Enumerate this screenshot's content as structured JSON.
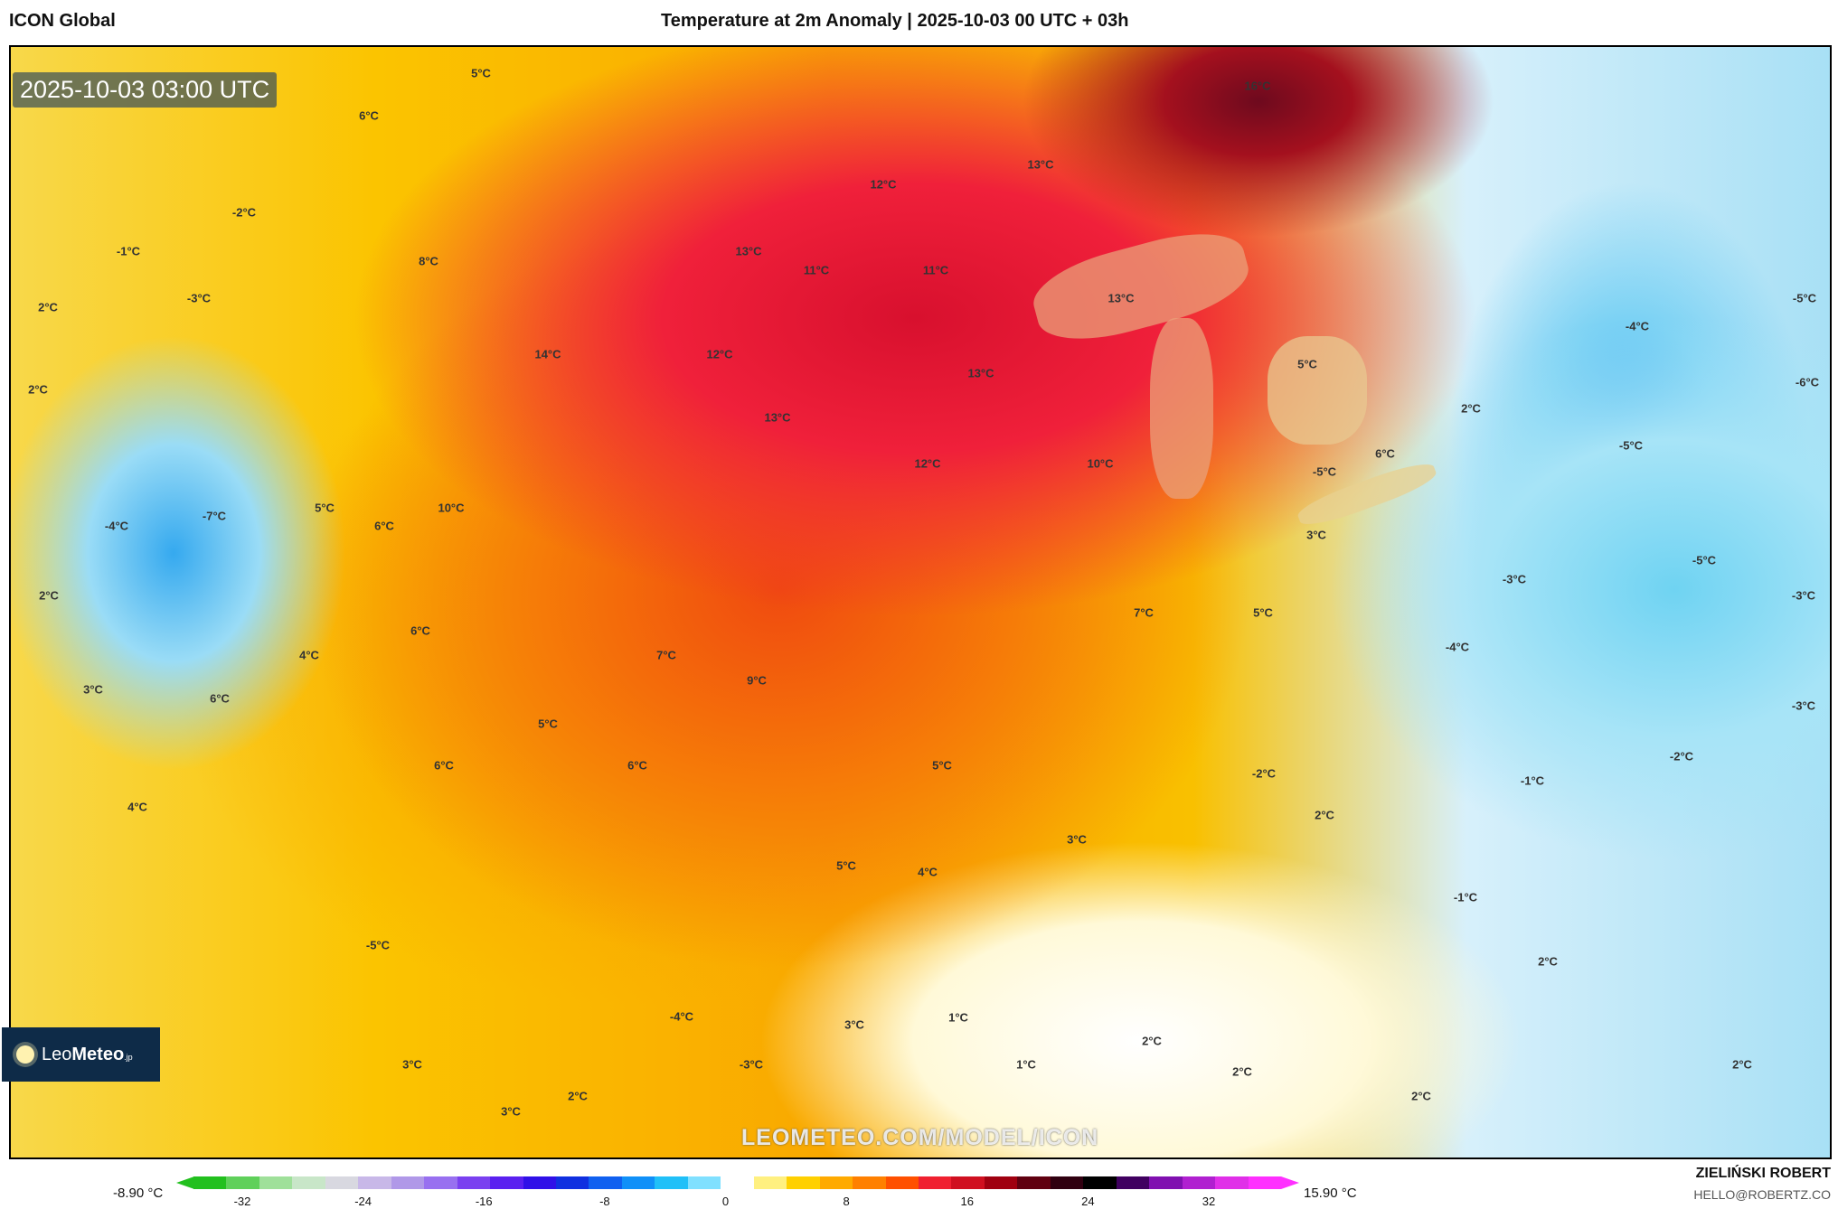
{
  "header": {
    "model": "ICON Global",
    "title": "Temperature at 2m Anomaly | 2025-10-03 00 UTC + 03h"
  },
  "map": {
    "timestamp": "2025-10-03 03:00 UTC",
    "watermark": "LEOMETEO.COM/MODEL/ICON",
    "labels": [
      "5°C",
      "6°C",
      "16°C",
      "13°C",
      "12°C",
      "-2°C",
      "-1°C",
      "8°C",
      "13°C",
      "11°C",
      "11°C",
      "-3°C",
      "2°C",
      "13°C",
      "-4°C",
      "-5°C",
      "12°C",
      "14°C",
      "5°C",
      "2°C",
      "13°C",
      "-6°C",
      "2°C",
      "13°C",
      "6°C",
      "12°C",
      "10°C",
      "-5°C",
      "-5°C",
      "5°C",
      "10°C",
      "-4°C",
      "-7°C",
      "6°C",
      "3°C",
      "-5°C",
      "-3°C",
      "2°C",
      "-3°C",
      "7°C",
      "5°C",
      "6°C",
      "-4°C",
      "4°C",
      "7°C",
      "9°C",
      "3°C",
      "-3°C",
      "6°C",
      "5°C",
      "-2°C",
      "6°C",
      "6°C",
      "5°C",
      "-2°C",
      "-1°C",
      "4°C",
      "2°C",
      "3°C",
      "5°C",
      "4°C",
      "-1°C",
      "2°C",
      "-5°C",
      "1°C",
      "-4°C",
      "3°C",
      "2°C",
      "1°C",
      "3°C",
      "-3°C",
      "2°C",
      "2°C",
      "2°C",
      "3°C",
      "2°C"
    ]
  },
  "logo": {
    "name_light": "Leo",
    "name_bold": "Meteo",
    "suffix": ".jp"
  },
  "colorbar": {
    "min_label": "-8.90 °C",
    "max_label": "15.90 °C",
    "ticks": [
      "-32",
      "-24",
      "-16",
      "-8",
      "0",
      "8",
      "16",
      "24",
      "32"
    ],
    "colors": [
      "#22c01e",
      "#5fd05a",
      "#9fe09a",
      "#c8e6c8",
      "#d8d8e0",
      "#c8b8e8",
      "#b098e8",
      "#9870f0",
      "#7a40f0",
      "#5a20f0",
      "#3010e8",
      "#1030e0",
      "#1060f0",
      "#1090f8",
      "#20c0f8",
      "#80e0ff",
      "#ffffff",
      "#fff080",
      "#ffd000",
      "#ffaa00",
      "#ff8000",
      "#ff5000",
      "#f02030",
      "#d01020",
      "#a00010",
      "#600010",
      "#300010",
      "#000000",
      "#400060",
      "#8010b0",
      "#b020d0",
      "#e030e8",
      "#ff30ff"
    ]
  },
  "credit": {
    "author": "ZIELIŃSKI ROBERT",
    "email": "HELLO@ROBERTZ.CO"
  }
}
